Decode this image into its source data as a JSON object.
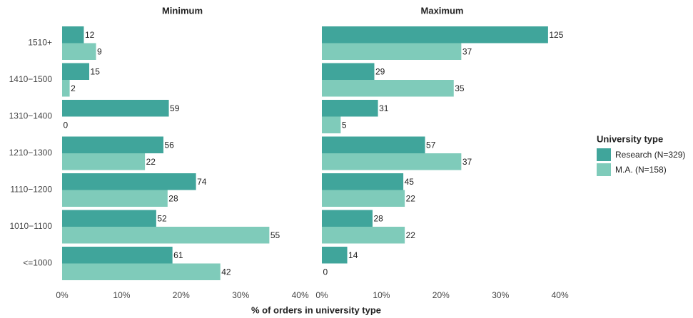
{
  "chart_data": {
    "type": "bar",
    "orientation": "horizontal",
    "x_label": "% of orders in university type",
    "categories": [
      "1510+",
      "1410−1500",
      "1310−1400",
      "1210−1300",
      "1110−1200",
      "1010−1100",
      "<=1000"
    ],
    "xlim": [
      0,
      41.6
    ],
    "xticks": [
      {
        "value": 0,
        "label": "0%"
      },
      {
        "value": 10,
        "label": "10%"
      },
      {
        "value": 20,
        "label": "20%"
      },
      {
        "value": 30,
        "label": "30%"
      },
      {
        "value": 40,
        "label": "40%"
      }
    ],
    "legend_title": "University type",
    "legend_position": "right",
    "series": [
      {
        "name": "Research (N=329)",
        "color": "#40a59b"
      },
      {
        "name": "M.A. (N=158)",
        "color": "#7fcbba"
      }
    ],
    "panels": [
      {
        "title": "Minimum",
        "values": [
          [
            3.65,
            4.56,
            17.93,
            17.02,
            22.49,
            15.81,
            18.54
          ],
          [
            5.7,
            1.27,
            0,
            13.92,
            17.72,
            34.81,
            26.58
          ]
        ],
        "counts": [
          [
            12,
            15,
            59,
            56,
            74,
            52,
            61
          ],
          [
            9,
            2,
            0,
            22,
            28,
            55,
            42
          ]
        ]
      },
      {
        "title": "Maximum",
        "values": [
          [
            37.99,
            8.81,
            9.42,
            17.33,
            13.68,
            8.51,
            4.26
          ],
          [
            23.42,
            22.15,
            3.16,
            23.42,
            13.92,
            13.92,
            0
          ]
        ],
        "counts": [
          [
            125,
            29,
            31,
            57,
            45,
            28,
            14
          ],
          [
            37,
            35,
            5,
            37,
            22,
            22,
            0
          ]
        ]
      }
    ]
  }
}
